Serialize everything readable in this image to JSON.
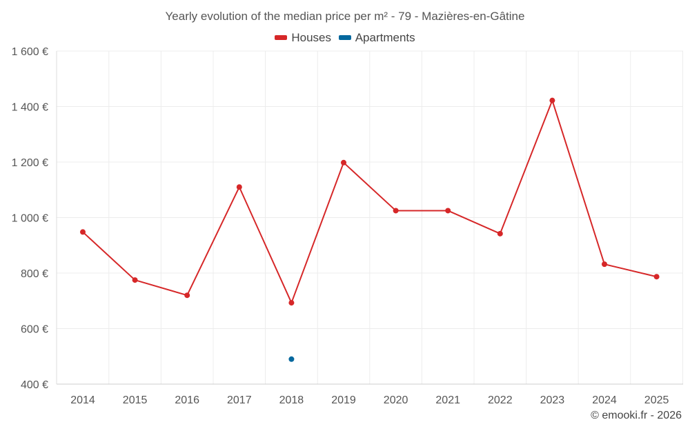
{
  "chart_data": {
    "type": "line",
    "title": "Yearly evolution of the median price per m² - 79 - Mazières-en-Gâtine",
    "categories": [
      "2014",
      "2015",
      "2016",
      "2017",
      "2018",
      "2019",
      "2020",
      "2021",
      "2022",
      "2023",
      "2024",
      "2025"
    ],
    "series": [
      {
        "name": "Houses",
        "color": "#d62728",
        "values": [
          948,
          775,
          720,
          1110,
          693,
          1198,
          1025,
          1025,
          942,
          1422,
          832,
          787
        ]
      },
      {
        "name": "Apartments",
        "color": "#05689e",
        "values": [
          null,
          null,
          null,
          null,
          490,
          null,
          null,
          null,
          null,
          null,
          null,
          null
        ]
      }
    ],
    "ylim": [
      400,
      1600
    ],
    "yticks": [
      400,
      600,
      800,
      1000,
      1200,
      1400,
      1600
    ],
    "ytick_labels": [
      "400 €",
      "600 €",
      "800 €",
      "1 000 €",
      "1 200 €",
      "1 400 €",
      "1 600 €"
    ],
    "xlabel": "",
    "ylabel": "",
    "grid": true,
    "legend_position": "top-center"
  },
  "credit": "© emooki.fr - 2026"
}
